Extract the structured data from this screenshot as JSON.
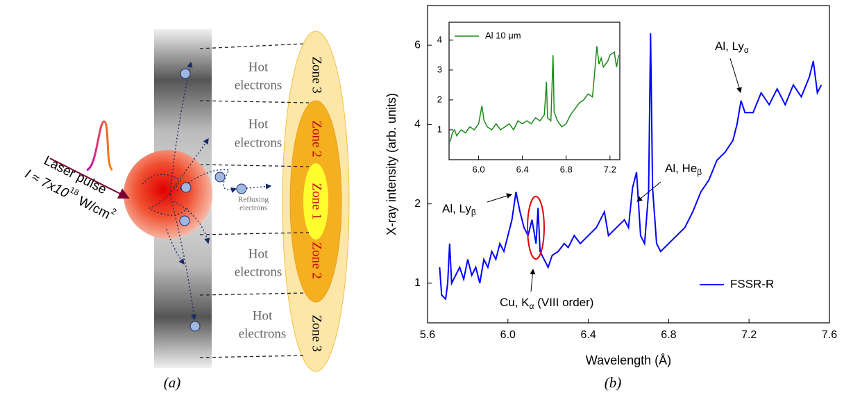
{
  "diagram": {
    "panel_label": "(a)",
    "hot_electrons": [
      [
        "Hot",
        "electrons"
      ],
      [
        "Hot",
        "electrons"
      ],
      [
        "Hot",
        "electrons"
      ],
      [
        "Hot",
        "electrons"
      ]
    ],
    "zones": [
      "Zone 3",
      "Zone 2",
      "Zone 1",
      "Zone 2",
      "Zone 3"
    ],
    "refluxing": [
      "Refluxing",
      "electrons"
    ],
    "laser": {
      "label": "Laser pulse",
      "intensity": [
        "I ≈ 7x10",
        "18",
        " W/cm",
        "2"
      ]
    }
  },
  "chart_data": [
    {
      "type": "line",
      "panel_label": "(b)",
      "xlabel": "Wavelength (Å)",
      "ylabel": "X-ray intensity (arb. units)",
      "x": [
        5.66,
        5.67,
        5.69,
        5.7,
        5.71,
        5.72,
        5.74,
        5.76,
        5.78,
        5.8,
        5.82,
        5.84,
        5.86,
        5.88,
        5.9,
        5.92,
        5.94,
        5.96,
        5.98,
        6.0,
        6.02,
        6.04,
        6.06,
        6.08,
        6.1,
        6.12,
        6.14,
        6.15,
        6.16,
        6.18,
        6.2,
        6.22,
        6.25,
        6.28,
        6.3,
        6.33,
        6.36,
        6.4,
        6.44,
        6.48,
        6.5,
        6.54,
        6.58,
        6.6,
        6.62,
        6.64,
        6.66,
        6.68,
        6.7,
        6.71,
        6.72,
        6.74,
        6.76,
        6.8,
        6.84,
        6.88,
        6.92,
        6.96,
        7.0,
        7.04,
        7.08,
        7.12,
        7.14,
        7.16,
        7.18,
        7.22,
        7.26,
        7.3,
        7.34,
        7.38,
        7.42,
        7.46,
        7.5,
        7.52,
        7.54,
        7.56
      ],
      "series": [
        {
          "name": "FSSR-R",
          "color": "#0000ff",
          "values": [
            1.2,
            0.85,
            0.8,
            1.0,
            1.5,
            1.0,
            1.1,
            1.2,
            1.05,
            1.3,
            1.1,
            1.2,
            1.0,
            1.3,
            1.2,
            1.4,
            1.3,
            1.5,
            1.4,
            1.6,
            1.8,
            2.3,
            1.9,
            1.7,
            1.6,
            1.8,
            1.5,
            1.95,
            1.4,
            1.3,
            1.2,
            1.35,
            1.4,
            1.5,
            1.45,
            1.6,
            1.5,
            1.6,
            1.7,
            1.9,
            1.6,
            1.7,
            1.8,
            1.7,
            2.4,
            2.8,
            1.6,
            1.5,
            2.3,
            6.3,
            2.4,
            1.5,
            1.4,
            1.5,
            1.6,
            1.7,
            1.9,
            2.3,
            2.6,
            3.1,
            3.3,
            3.6,
            4.0,
            4.6,
            4.3,
            4.3,
            4.8,
            4.5,
            4.9,
            4.5,
            5.0,
            4.7,
            5.2,
            5.6,
            4.8,
            5.0
          ]
        }
      ],
      "xlim": [
        5.6,
        7.6
      ],
      "xticks": [
        5.6,
        {
          "value": 6,
          "label": "6.0"
        },
        6.4,
        6.8,
        7.2,
        7.6
      ],
      "ylim": [
        0.5,
        7
      ],
      "yticks": [
        1,
        2,
        4,
        6
      ],
      "yscale": "piecewise",
      "annotations": [
        {
          "parts": [
            "Al, Ly",
            "α"
          ]
        },
        {
          "parts": [
            "Al, He",
            "β"
          ]
        },
        {
          "parts": [
            "Al, Ly",
            "β"
          ]
        },
        {
          "parts": [
            "Cu, K",
            "α",
            " (VIII order)"
          ]
        }
      ]
    },
    {
      "type": "line",
      "x": [
        5.74,
        5.76,
        5.78,
        5.8,
        5.84,
        5.88,
        5.92,
        5.96,
        6.0,
        6.03,
        6.05,
        6.08,
        6.12,
        6.16,
        6.2,
        6.24,
        6.28,
        6.32,
        6.36,
        6.4,
        6.44,
        6.48,
        6.52,
        6.56,
        6.6,
        6.62,
        6.63,
        6.66,
        6.68,
        6.69,
        6.72,
        6.76,
        6.8,
        6.84,
        6.88,
        6.92,
        6.96,
        7.0,
        7.04,
        7.06,
        7.08,
        7.1,
        7.12,
        7.14,
        7.18,
        7.2,
        7.24,
        7.26,
        7.28
      ],
      "series": [
        {
          "name": "Al 10 μm",
          "color": "#1a8a1a",
          "values": [
            0.6,
            0.9,
            1.0,
            0.8,
            1.0,
            0.9,
            1.1,
            1.0,
            1.2,
            1.8,
            1.3,
            1.1,
            1.0,
            1.2,
            1.0,
            1.1,
            1.2,
            1.0,
            1.3,
            1.2,
            1.3,
            1.2,
            1.4,
            1.3,
            1.5,
            2.6,
            1.4,
            1.3,
            3.5,
            1.6,
            1.3,
            1.1,
            1.2,
            1.5,
            1.7,
            1.9,
            2.0,
            2.2,
            2.1,
            2.9,
            3.8,
            3.2,
            3.4,
            3.1,
            3.3,
            3.5,
            3.6,
            3.1,
            3.5
          ]
        }
      ],
      "xlim": [
        5.73,
        7.29
      ],
      "xticks": [
        {
          "value": 6,
          "label": "6.0"
        },
        6.4,
        6.8,
        7.2
      ],
      "ylim": [
        0,
        4.6
      ],
      "yticks": [
        1,
        2,
        3,
        4
      ]
    }
  ]
}
